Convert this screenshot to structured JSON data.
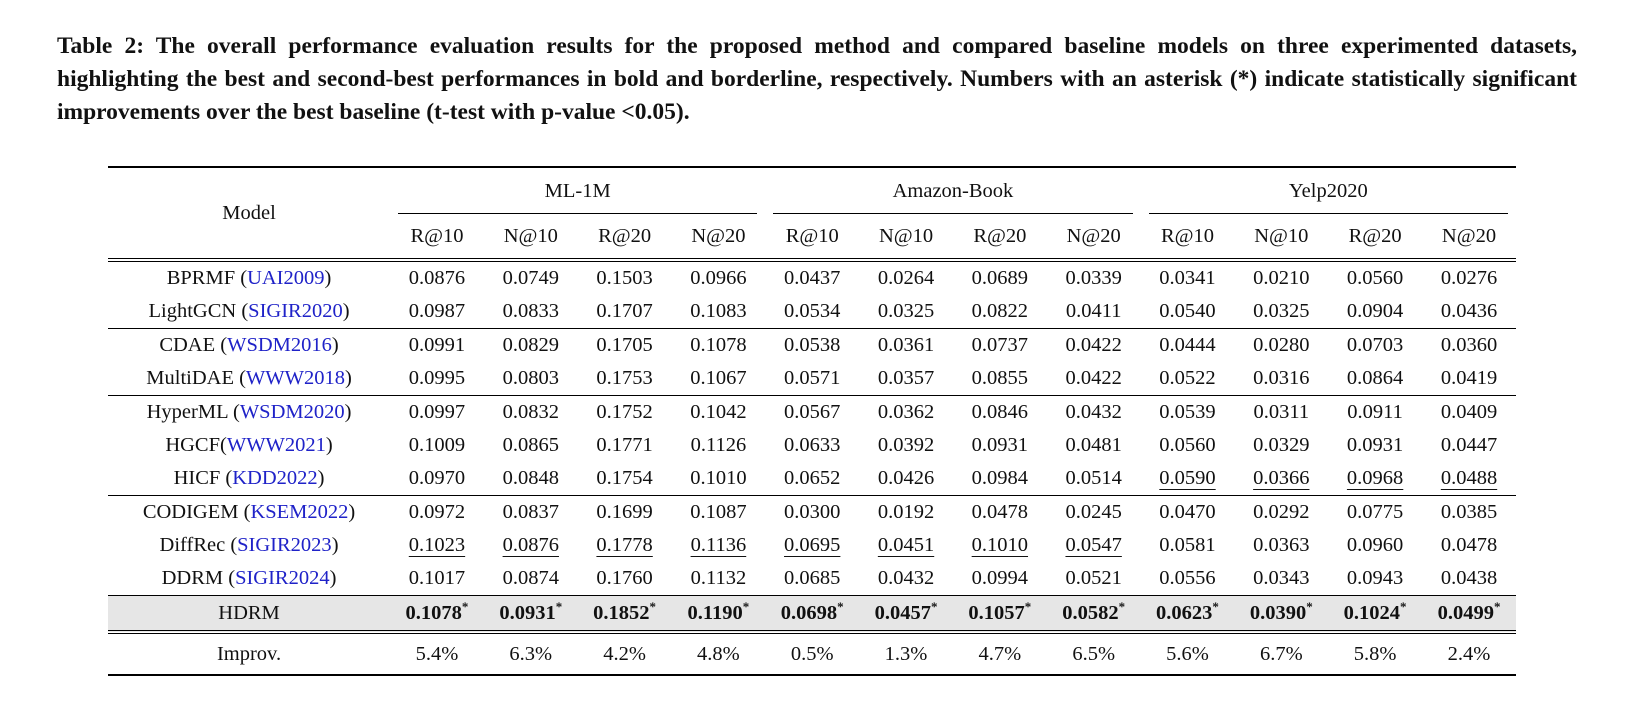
{
  "caption": "Table 2: The overall performance evaluation results for the proposed method and compared baseline models on three experimented datasets, highlighting the best and second-best performances in bold and borderline, respectively. Numbers with an asterisk (*) indicate statistically significant improvements over the best baseline (t-test with p-value <0.05).",
  "header": {
    "model": "Model",
    "datasets": [
      "ML-1M",
      "Amazon-Book",
      "Yelp2020"
    ],
    "metrics": [
      "R@10",
      "N@10",
      "R@20",
      "N@20",
      "R@10",
      "N@10",
      "R@20",
      "N@20",
      "R@10",
      "N@10",
      "R@20",
      "N@20"
    ]
  },
  "rows": [
    {
      "name": "BPRMF",
      "venue": "UAI2009",
      "values": [
        "0.0876",
        "0.0749",
        "0.1503",
        "0.0966",
        "0.0437",
        "0.0264",
        "0.0689",
        "0.0339",
        "0.0341",
        "0.0210",
        "0.0560",
        "0.0276"
      ],
      "underline": []
    },
    {
      "name": "LightGCN",
      "venue": "SIGIR2020",
      "values": [
        "0.0987",
        "0.0833",
        "0.1707",
        "0.1083",
        "0.0534",
        "0.0325",
        "0.0822",
        "0.0411",
        "0.0540",
        "0.0325",
        "0.0904",
        "0.0436"
      ],
      "underline": []
    },
    {
      "name": "CDAE",
      "venue": "WSDM2016",
      "values": [
        "0.0991",
        "0.0829",
        "0.1705",
        "0.1078",
        "0.0538",
        "0.0361",
        "0.0737",
        "0.0422",
        "0.0444",
        "0.0280",
        "0.0703",
        "0.0360"
      ],
      "underline": []
    },
    {
      "name": "MultiDAE",
      "venue": "WWW2018",
      "values": [
        "0.0995",
        "0.0803",
        "0.1753",
        "0.1067",
        "0.0571",
        "0.0357",
        "0.0855",
        "0.0422",
        "0.0522",
        "0.0316",
        "0.0864",
        "0.0419"
      ],
      "underline": []
    },
    {
      "name": "HyperML",
      "venue": "WSDM2020",
      "values": [
        "0.0997",
        "0.0832",
        "0.1752",
        "0.1042",
        "0.0567",
        "0.0362",
        "0.0846",
        "0.0432",
        "0.0539",
        "0.0311",
        "0.0911",
        "0.0409"
      ],
      "underline": []
    },
    {
      "name": "HGCF",
      "venue": "WWW2021",
      "values": [
        "0.1009",
        "0.0865",
        "0.1771",
        "0.1126",
        "0.0633",
        "0.0392",
        "0.0931",
        "0.0481",
        "0.0560",
        "0.0329",
        "0.0931",
        "0.0447"
      ],
      "underline": []
    },
    {
      "name": "HICF",
      "venue": "KDD2022",
      "values": [
        "0.0970",
        "0.0848",
        "0.1754",
        "0.1010",
        "0.0652",
        "0.0426",
        "0.0984",
        "0.0514",
        "0.0590",
        "0.0366",
        "0.0968",
        "0.0488"
      ],
      "underline": [
        8,
        9,
        10,
        11
      ]
    },
    {
      "name": "CODIGEM",
      "venue": "KSEM2022",
      "values": [
        "0.0972",
        "0.0837",
        "0.1699",
        "0.1087",
        "0.0300",
        "0.0192",
        "0.0478",
        "0.0245",
        "0.0470",
        "0.0292",
        "0.0775",
        "0.0385"
      ],
      "underline": []
    },
    {
      "name": "DiffRec",
      "venue": "SIGIR2023",
      "values": [
        "0.1023",
        "0.0876",
        "0.1778",
        "0.1136",
        "0.0695",
        "0.0451",
        "0.1010",
        "0.0547",
        "0.0581",
        "0.0363",
        "0.0960",
        "0.0478"
      ],
      "underline": [
        0,
        1,
        2,
        3,
        4,
        5,
        6,
        7
      ]
    },
    {
      "name": "DDRM",
      "venue": "SIGIR2024",
      "values": [
        "0.1017",
        "0.0874",
        "0.1760",
        "0.1132",
        "0.0685",
        "0.0432",
        "0.0994",
        "0.0521",
        "0.0556",
        "0.0343",
        "0.0943",
        "0.0438"
      ],
      "underline": []
    }
  ],
  "hdrm": {
    "name": "HDRM",
    "values": [
      "0.1078",
      "0.0931",
      "0.1852",
      "0.1190",
      "0.0698",
      "0.0457",
      "0.1057",
      "0.0582",
      "0.0623",
      "0.0390",
      "0.1024",
      "0.0499"
    ],
    "marker": "*"
  },
  "improv": {
    "name": "Improv.",
    "values": [
      "5.4%",
      "6.3%",
      "4.2%",
      "4.8%",
      "0.5%",
      "1.3%",
      "4.7%",
      "6.5%",
      "5.6%",
      "6.7%",
      "5.8%",
      "2.4%"
    ]
  },
  "colors": {
    "venue": "#1f22c8",
    "highlight_row": "#e6e6e6"
  }
}
